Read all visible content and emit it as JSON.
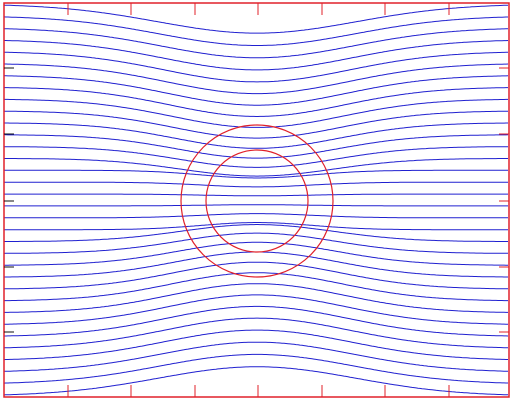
{
  "figure": {
    "colors": {
      "background": "#ffffff",
      "streamline": "#2020d0",
      "circle": "#e0202a",
      "frame": "#e0202a",
      "axis_tick": "#111111"
    },
    "streamline_count": 34,
    "circles": [
      {
        "name": "outer-circle"
      },
      {
        "name": "inner-circle"
      }
    ]
  }
}
